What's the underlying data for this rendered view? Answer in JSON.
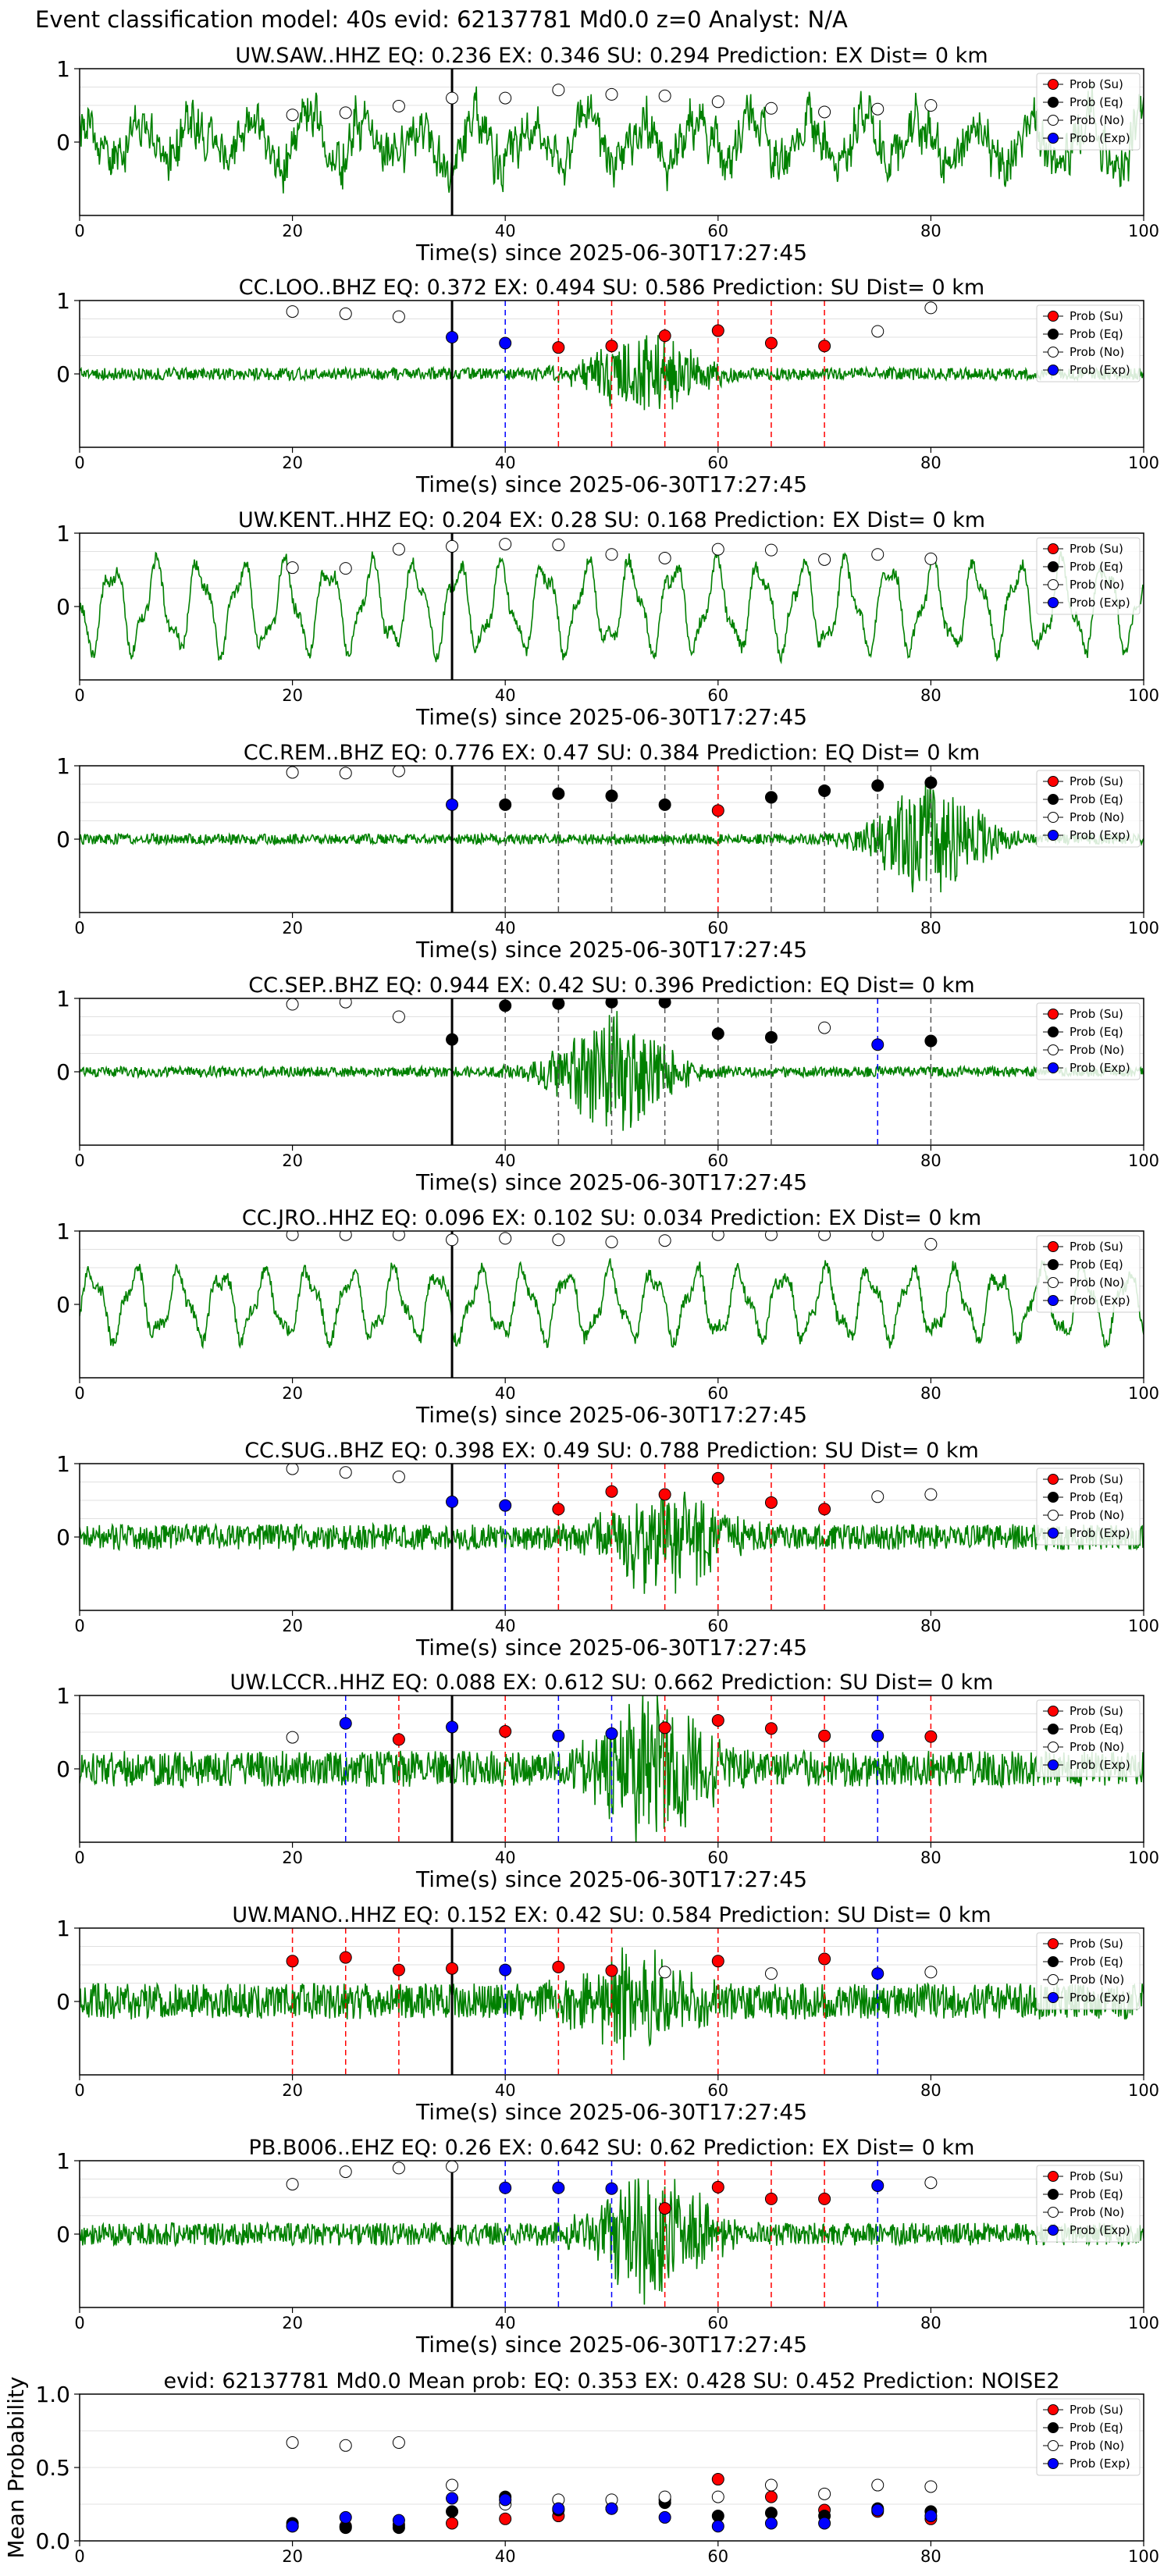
{
  "page": {
    "suptitle": "Event classification model: 40s evid: 62137781 Md0.0 z=0 Analyst: N/A"
  },
  "style": {
    "wave_color": "#008000",
    "su_color": "#ff0000",
    "eq_color": "#000000",
    "no_color": "#ffffff",
    "exp_color": "#0000ff",
    "origin_line_color": "#000000",
    "grid_color": "#e0e0e0"
  },
  "legend": [
    "Prob (Su)",
    "Prob (Eq)",
    "Prob (No)",
    "Prob (Exp)"
  ],
  "chart_data": [
    {
      "type": "line",
      "title": "UW.SAW..HHZ   EQ: 0.236  EX: 0.346  SU: 0.294   Prediction: EX    Dist= 0 km",
      "xlabel": "Time(s) since 2025-06-30T17:27:45",
      "xlim": [
        0,
        100
      ],
      "ylim": [
        -1,
        1
      ],
      "xticks": [
        0,
        20,
        40,
        60,
        80,
        100
      ],
      "yticks": [
        0,
        1
      ],
      "origin_time": 35,
      "legend_position": "top-right",
      "grid": true,
      "wave": {
        "style": "mixed",
        "amplitude": 0.65,
        "seed": 1
      },
      "classes": [
        "No",
        "No",
        "No",
        "No",
        "No",
        "No",
        "No",
        "No",
        "No",
        "No",
        "No",
        "No",
        "No"
      ],
      "probs": [
        0.37,
        0.4,
        0.49,
        0.6,
        0.6,
        0.71,
        0.65,
        0.63,
        0.55,
        0.46,
        0.41,
        0.45,
        0.5
      ]
    },
    {
      "type": "line",
      "title": "CC.LOO..BHZ   EQ: 0.372  EX: 0.494  SU: 0.586   Prediction: SU    Dist= 0 km",
      "xlabel": "Time(s) since 2025-06-30T17:27:45",
      "xlim": [
        0,
        100
      ],
      "ylim": [
        -1,
        1
      ],
      "xticks": [
        0,
        20,
        40,
        60,
        80,
        100
      ],
      "yticks": [
        0,
        1
      ],
      "origin_time": 35,
      "legend_position": "top-right",
      "grid": true,
      "wave": {
        "style": "burst",
        "amplitude": 0.12,
        "burst_center": 53,
        "burst_amp": 0.55,
        "seed": 2
      },
      "classes": [
        "No",
        "No",
        "No",
        "Exp",
        "Exp",
        "Su",
        "Su",
        "Su",
        "Su",
        "Su",
        "Su",
        "No",
        "No"
      ],
      "probs": [
        0.85,
        0.82,
        0.78,
        0.5,
        0.42,
        0.36,
        0.38,
        0.52,
        0.59,
        0.42,
        0.38,
        0.58,
        0.9
      ]
    },
    {
      "type": "line",
      "title": "UW.KENT..HHZ   EQ: 0.204  EX: 0.28  SU: 0.168   Prediction: EX    Dist= 0 km",
      "xlabel": "Time(s) since 2025-06-30T17:27:45",
      "xlim": [
        0,
        100
      ],
      "ylim": [
        -1,
        1
      ],
      "xticks": [
        0,
        20,
        40,
        60,
        80,
        100
      ],
      "yticks": [
        0,
        1
      ],
      "origin_time": 35,
      "legend_position": "top-right",
      "grid": true,
      "wave": {
        "style": "oscillation",
        "amplitude": 0.7,
        "seed": 3
      },
      "classes": [
        "No",
        "No",
        "No",
        "No",
        "No",
        "No",
        "No",
        "No",
        "No",
        "No",
        "No",
        "No",
        "No"
      ],
      "probs": [
        0.53,
        0.52,
        0.78,
        0.82,
        0.85,
        0.84,
        0.71,
        0.66,
        0.78,
        0.77,
        0.64,
        0.71,
        0.65
      ]
    },
    {
      "type": "line",
      "title": "CC.REM..BHZ   EQ: 0.776  EX: 0.47  SU: 0.384   Prediction: EQ    Dist= 0 km",
      "xlabel": "Time(s) since 2025-06-30T17:27:45",
      "xlim": [
        0,
        100
      ],
      "ylim": [
        -1,
        1
      ],
      "xticks": [
        0,
        20,
        40,
        60,
        80,
        100
      ],
      "yticks": [
        0,
        1
      ],
      "origin_time": 35,
      "legend_position": "top-right",
      "grid": true,
      "wave": {
        "style": "burst",
        "amplitude": 0.1,
        "burst_center": 80,
        "burst_amp": 0.75,
        "seed": 4
      },
      "classes": [
        "No",
        "No",
        "No",
        "Exp",
        "Eq",
        "Eq",
        "Eq",
        "Eq",
        "Su",
        "Eq",
        "Eq",
        "Eq",
        "Eq"
      ],
      "probs": [
        0.91,
        0.9,
        0.93,
        0.47,
        0.47,
        0.62,
        0.59,
        0.47,
        0.39,
        0.57,
        0.66,
        0.73,
        0.77
      ]
    },
    {
      "type": "line",
      "title": "CC.SEP..BHZ   EQ: 0.944  EX: 0.42  SU: 0.396   Prediction: EQ    Dist= 0 km",
      "xlabel": "Time(s) since 2025-06-30T17:27:45",
      "xlim": [
        0,
        100
      ],
      "ylim": [
        -1,
        1
      ],
      "xticks": [
        0,
        20,
        40,
        60,
        80,
        100
      ],
      "yticks": [
        0,
        1
      ],
      "origin_time": 35,
      "legend_position": "top-right",
      "grid": true,
      "wave": {
        "style": "burst",
        "amplitude": 0.1,
        "burst_center": 50,
        "burst_amp": 0.8,
        "seed": 5
      },
      "classes": [
        "No",
        "No",
        "No",
        "Eq",
        "Eq",
        "Eq",
        "Eq",
        "Eq",
        "Eq",
        "Eq",
        "No",
        "Exp",
        "Eq"
      ],
      "probs": [
        0.92,
        0.95,
        0.75,
        0.44,
        0.9,
        0.93,
        0.95,
        0.95,
        0.52,
        0.47,
        0.6,
        0.37,
        0.42
      ]
    },
    {
      "type": "line",
      "title": "CC.JRO..HHZ   EQ: 0.096  EX: 0.102  SU: 0.034   Prediction: EX    Dist= 0 km",
      "xlabel": "Time(s) since 2025-06-30T17:27:45",
      "xlim": [
        0,
        100
      ],
      "ylim": [
        -1,
        1
      ],
      "xticks": [
        0,
        20,
        40,
        60,
        80,
        100
      ],
      "yticks": [
        0,
        1
      ],
      "origin_time": 35,
      "legend_position": "top-right",
      "grid": true,
      "wave": {
        "style": "oscillation",
        "amplitude": 0.55,
        "seed": 6
      },
      "classes": [
        "No",
        "No",
        "No",
        "No",
        "No",
        "No",
        "No",
        "No",
        "No",
        "No",
        "No",
        "No",
        "No"
      ],
      "probs": [
        0.95,
        0.95,
        0.95,
        0.88,
        0.9,
        0.88,
        0.85,
        0.87,
        0.95,
        0.95,
        0.95,
        0.95,
        0.82
      ]
    },
    {
      "type": "line",
      "title": "CC.SUG..BHZ   EQ: 0.398  EX: 0.49  SU: 0.788   Prediction: SU    Dist= 0 km",
      "xlabel": "Time(s) since 2025-06-30T17:27:45",
      "xlim": [
        0,
        100
      ],
      "ylim": [
        -1,
        1
      ],
      "xticks": [
        0,
        20,
        40,
        60,
        80,
        100
      ],
      "yticks": [
        0,
        1
      ],
      "origin_time": 35,
      "legend_position": "top-right",
      "grid": true,
      "wave": {
        "style": "burst",
        "amplitude": 0.25,
        "burst_center": 55,
        "burst_amp": 0.75,
        "seed": 7
      },
      "classes": [
        "No",
        "No",
        "No",
        "Exp",
        "Exp",
        "Su",
        "Su",
        "Su",
        "Su",
        "Su",
        "Su",
        "No",
        "No"
      ],
      "probs": [
        0.93,
        0.88,
        0.82,
        0.48,
        0.43,
        0.38,
        0.62,
        0.58,
        0.8,
        0.47,
        0.38,
        0.55,
        0.58
      ]
    },
    {
      "type": "line",
      "title": "UW.LCCR..HHZ   EQ: 0.088  EX: 0.612  SU: 0.662   Prediction: SU    Dist= 0 km",
      "xlabel": "Time(s) since 2025-06-30T17:27:45",
      "xlim": [
        0,
        100
      ],
      "ylim": [
        -1,
        1
      ],
      "xticks": [
        0,
        20,
        40,
        60,
        80,
        100
      ],
      "yticks": [
        0,
        1
      ],
      "origin_time": 35,
      "legend_position": "top-right",
      "grid": true,
      "wave": {
        "style": "burst",
        "amplitude": 0.35,
        "burst_center": 54,
        "burst_amp": 0.9,
        "seed": 8
      },
      "classes": [
        "No",
        "Exp",
        "Su",
        "Exp",
        "Su",
        "Exp",
        "Exp",
        "Su",
        "Su",
        "Su",
        "Su",
        "Exp",
        "Su"
      ],
      "probs": [
        0.43,
        0.62,
        0.4,
        0.57,
        0.51,
        0.45,
        0.48,
        0.56,
        0.66,
        0.55,
        0.45,
        0.45,
        0.44
      ]
    },
    {
      "type": "line",
      "title": "UW.MANO..HHZ   EQ: 0.152  EX: 0.42  SU: 0.584   Prediction: SU    Dist= 0 km",
      "xlabel": "Time(s) since 2025-06-30T17:27:45",
      "xlim": [
        0,
        100
      ],
      "ylim": [
        -1,
        1
      ],
      "xticks": [
        0,
        20,
        40,
        60,
        80,
        100
      ],
      "yticks": [
        0,
        1
      ],
      "origin_time": 35,
      "legend_position": "top-right",
      "grid": true,
      "wave": {
        "style": "burst",
        "amplitude": 0.35,
        "burst_center": 52,
        "burst_amp": 0.6,
        "seed": 9
      },
      "classes": [
        "Su",
        "Su",
        "Su",
        "Su",
        "Exp",
        "Su",
        "Su",
        "No",
        "Su",
        "No",
        "Su",
        "Exp",
        "No"
      ],
      "probs": [
        0.55,
        0.6,
        0.43,
        0.45,
        0.43,
        0.47,
        0.42,
        0.4,
        0.55,
        0.38,
        0.58,
        0.38,
        0.4
      ]
    },
    {
      "type": "line",
      "title": "PB.B006..EHZ   EQ: 0.26  EX: 0.642  SU: 0.62   Prediction: EX    Dist= 0 km",
      "xlabel": "Time(s) since 2025-06-30T17:27:45",
      "xlim": [
        0,
        100
      ],
      "ylim": [
        -1,
        1
      ],
      "xticks": [
        0,
        20,
        40,
        60,
        80,
        100
      ],
      "yticks": [
        0,
        1
      ],
      "origin_time": 35,
      "legend_position": "top-right",
      "grid": true,
      "wave": {
        "style": "burst",
        "amplitude": 0.22,
        "burst_center": 54,
        "burst_amp": 0.85,
        "seed": 10
      },
      "classes": [
        "No",
        "No",
        "No",
        "No",
        "Exp",
        "Exp",
        "Exp",
        "Su",
        "Su",
        "Su",
        "Su",
        "Exp",
        "No"
      ],
      "probs": [
        0.68,
        0.85,
        0.9,
        0.92,
        0.63,
        0.63,
        0.62,
        0.35,
        0.64,
        0.48,
        0.48,
        0.66,
        0.7
      ]
    },
    {
      "type": "scatter",
      "title": "evid: 62137781   Md0.0    Mean prob:    EQ: 0.353   EX: 0.428   SU: 0.452    Prediction: NOISE2",
      "ylabel": "Mean Probability",
      "xlim": [
        0,
        100
      ],
      "ylim": [
        0,
        1
      ],
      "xticks": [
        0,
        20,
        40,
        60,
        80,
        100
      ],
      "yticks": [
        0.0,
        0.5,
        1.0
      ],
      "legend_position": "top-right",
      "grid": true,
      "x": [
        20,
        25,
        30,
        35,
        40,
        45,
        50,
        55,
        60,
        65,
        70,
        75,
        80
      ],
      "series": [
        {
          "name": "Prob (Su)",
          "class": "Su",
          "values": [
            0.1,
            0.1,
            0.11,
            0.12,
            0.15,
            0.17,
            0.22,
            0.28,
            0.42,
            0.3,
            0.21,
            0.2,
            0.15
          ]
        },
        {
          "name": "Prob (Eq)",
          "class": "Eq",
          "values": [
            0.12,
            0.09,
            0.09,
            0.2,
            0.3,
            0.21,
            0.22,
            0.26,
            0.17,
            0.19,
            0.17,
            0.22,
            0.2
          ]
        },
        {
          "name": "Prob (No)",
          "class": "No",
          "values": [
            0.67,
            0.65,
            0.67,
            0.38,
            0.25,
            0.28,
            0.28,
            0.3,
            0.3,
            0.38,
            0.32,
            0.38,
            0.37
          ]
        },
        {
          "name": "Prob (Exp)",
          "class": "Exp",
          "values": [
            0.1,
            0.16,
            0.14,
            0.29,
            0.28,
            0.22,
            0.22,
            0.16,
            0.1,
            0.12,
            0.12,
            0.21,
            0.17
          ]
        }
      ]
    }
  ]
}
